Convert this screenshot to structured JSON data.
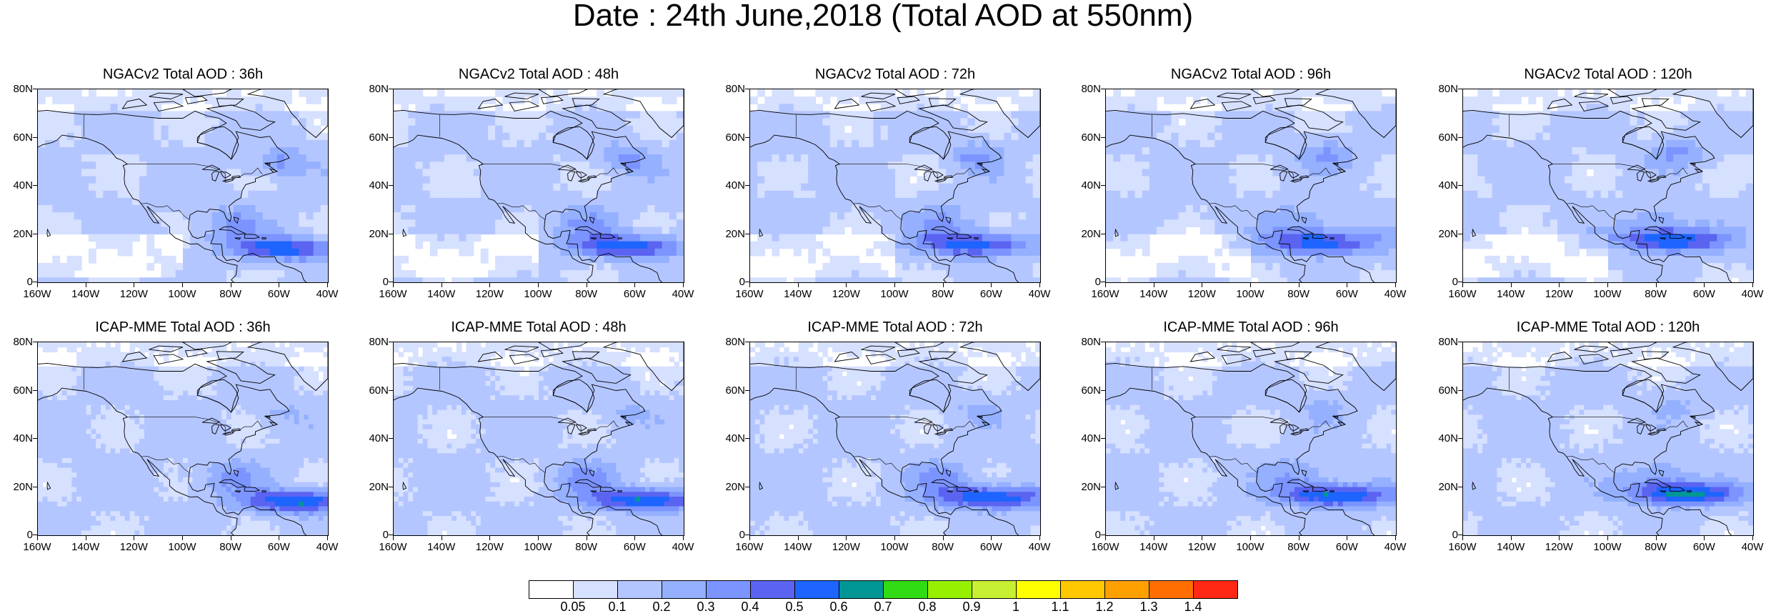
{
  "title": "Date : 24th June,2018 (Total AOD at 550nm)",
  "lat_ticks": [
    "80N",
    "60N",
    "40N",
    "20N",
    "0"
  ],
  "lon_ticks": [
    "160W",
    "140W",
    "120W",
    "100W",
    "80W",
    "60W",
    "40W"
  ],
  "panels": [
    {
      "title": "NGACv2 Total AOD : 36h",
      "model": "NGACv2",
      "lead": "36h"
    },
    {
      "title": "NGACv2 Total AOD : 48h",
      "model": "NGACv2",
      "lead": "48h"
    },
    {
      "title": "NGACv2 Total AOD : 72h",
      "model": "NGACv2",
      "lead": "72h"
    },
    {
      "title": "NGACv2 Total AOD : 96h",
      "model": "NGACv2",
      "lead": "96h"
    },
    {
      "title": "NGACv2 Total AOD : 120h",
      "model": "NGACv2",
      "lead": "120h"
    },
    {
      "title": "ICAP-MME Total AOD : 36h",
      "model": "ICAP-MME",
      "lead": "36h"
    },
    {
      "title": "ICAP-MME Total AOD : 48h",
      "model": "ICAP-MME",
      "lead": "48h"
    },
    {
      "title": "ICAP-MME Total AOD : 72h",
      "model": "ICAP-MME",
      "lead": "72h"
    },
    {
      "title": "ICAP-MME Total AOD : 96h",
      "model": "ICAP-MME",
      "lead": "96h"
    },
    {
      "title": "ICAP-MME Total AOD : 120h",
      "model": "ICAP-MME",
      "lead": "120h"
    }
  ],
  "colorbar": {
    "labels": [
      "0.05",
      "0.1",
      "0.2",
      "0.3",
      "0.4",
      "0.5",
      "0.6",
      "0.7",
      "0.8",
      "0.9",
      "1",
      "1.1",
      "1.2",
      "1.3",
      "1.4"
    ],
    "colors": [
      "#ffffff",
      "#d6e0ff",
      "#b4c6ff",
      "#94b0ff",
      "#7c94ff",
      "#5a64f0",
      "#1e64ff",
      "#009696",
      "#32dc14",
      "#96f000",
      "#c8f032",
      "#ffff00",
      "#ffc800",
      "#ffa000",
      "#ff6e00",
      "#ff2814"
    ]
  }
}
